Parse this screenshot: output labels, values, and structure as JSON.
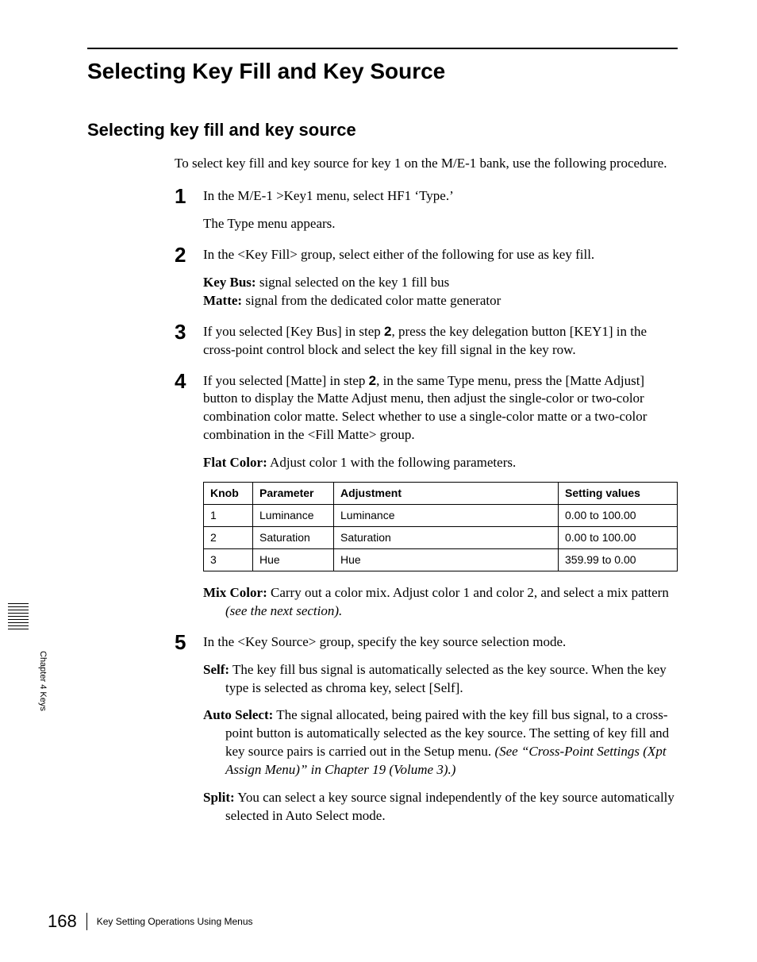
{
  "page": {
    "h1": "Selecting Key Fill and Key Source",
    "h2": "Selecting key fill and key source",
    "intro": "To select key fill and key source for key 1 on the M/E-1 bank, use the following procedure.",
    "sideLabel": "Chapter 4  Keys",
    "pageNumber": "168",
    "footerText": "Key Setting Operations Using Menus"
  },
  "steps": {
    "s1": {
      "num": "1",
      "line1": "In the M/E-1 >Key1 menu, select HF1 ‘Type.’",
      "line2": "The Type menu appears."
    },
    "s2": {
      "num": "2",
      "line1": "In the <Key Fill> group, select either of the following for use as key fill.",
      "keybus_label": "Key Bus:",
      "keybus_text": " signal selected on the key 1 fill bus",
      "matte_label": "Matte:",
      "matte_text": " signal from the dedicated color matte generator"
    },
    "s3": {
      "num": "3",
      "pre": "If you selected [Key Bus] in step ",
      "boldnum": "2",
      "post": ", press the key delegation button [KEY1] in the cross-point control block and select the key fill signal in the key row."
    },
    "s4": {
      "num": "4",
      "pre": "If you selected [Matte] in step ",
      "boldnum": "2",
      "post": ", in the same Type menu, press the [Matte Adjust] button to display the Matte Adjust menu, then adjust the single-color or two-color combination color matte. Select whether to use a single-color matte or a two-color combination in the <Fill Matte> group.",
      "flat_label": "Flat Color:",
      "flat_text": " Adjust color 1 with the following parameters.",
      "mix_label": "Mix Color:",
      "mix_text": " Carry out a color mix. Adjust color 1 and color 2, and select a mix pattern ",
      "mix_italic": "(see the next section)."
    },
    "s5": {
      "num": "5",
      "line1": "In the <Key Source> group, specify the key source selection mode.",
      "self_label": "Self:",
      "self_text": " The key fill bus signal is automatically selected as the key source. When the key type is selected as chroma key, select [Self].",
      "auto_label": "Auto Select:",
      "auto_text": " The signal allocated, being paired with the key fill bus signal, to a cross-point button is automatically selected as the key source. The setting of key fill and key source pairs is carried out in the Setup menu. ",
      "auto_italic": "(See “Cross-Point Settings (Xpt Assign Menu)” in Chapter 19 (Volume 3).)",
      "split_label": "Split:",
      "split_text": " You can select a key source signal independently of the key source automatically selected in Auto Select mode."
    }
  },
  "table": {
    "headers": {
      "knob": "Knob",
      "param": "Parameter",
      "adj": "Adjustment",
      "set": "Setting values"
    },
    "rows": [
      {
        "knob": "1",
        "param": "Luminance",
        "adj": "Luminance",
        "set": "0.00 to 100.00"
      },
      {
        "knob": "2",
        "param": "Saturation",
        "adj": "Saturation",
        "set": "0.00 to 100.00"
      },
      {
        "knob": "3",
        "param": "Hue",
        "adj": "Hue",
        "set": "359.99 to 0.00"
      }
    ]
  }
}
